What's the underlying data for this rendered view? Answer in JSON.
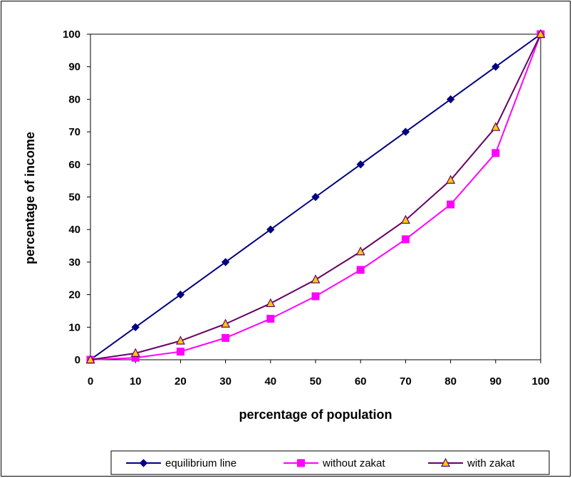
{
  "chart_data": {
    "type": "line",
    "xlabel": "percentage of population",
    "ylabel": "percentage of income",
    "x": [
      0,
      10,
      20,
      30,
      40,
      50,
      60,
      70,
      80,
      90,
      100
    ],
    "xlim": [
      0,
      100
    ],
    "ylim": [
      0,
      100
    ],
    "yticks": [
      0,
      10,
      20,
      30,
      40,
      50,
      60,
      70,
      80,
      90,
      100
    ],
    "xticks": [
      0,
      10,
      20,
      30,
      40,
      50,
      60,
      70,
      80,
      90,
      100
    ],
    "grid": false,
    "legend_position": "bottom",
    "series": [
      {
        "name": "equilibrium line",
        "color": "#000080",
        "fill": "#000080",
        "marker": "diamond",
        "values": [
          0,
          10,
          20,
          30,
          40,
          50,
          60,
          70,
          80,
          90,
          100
        ]
      },
      {
        "name": "without zakat",
        "color": "#ff00ff",
        "fill": "#ff00ff",
        "marker": "square",
        "values": [
          0,
          0.6,
          2.5,
          6.7,
          12.6,
          19.5,
          27.6,
          37.0,
          47.7,
          63.5,
          100
        ]
      },
      {
        "name": "with zakat",
        "color": "#660066",
        "fill": "#ffcc00",
        "marker": "triangle",
        "values": [
          0,
          2.0,
          5.8,
          11.0,
          17.3,
          24.6,
          33.2,
          42.9,
          55.2,
          71.4,
          100
        ]
      }
    ]
  }
}
